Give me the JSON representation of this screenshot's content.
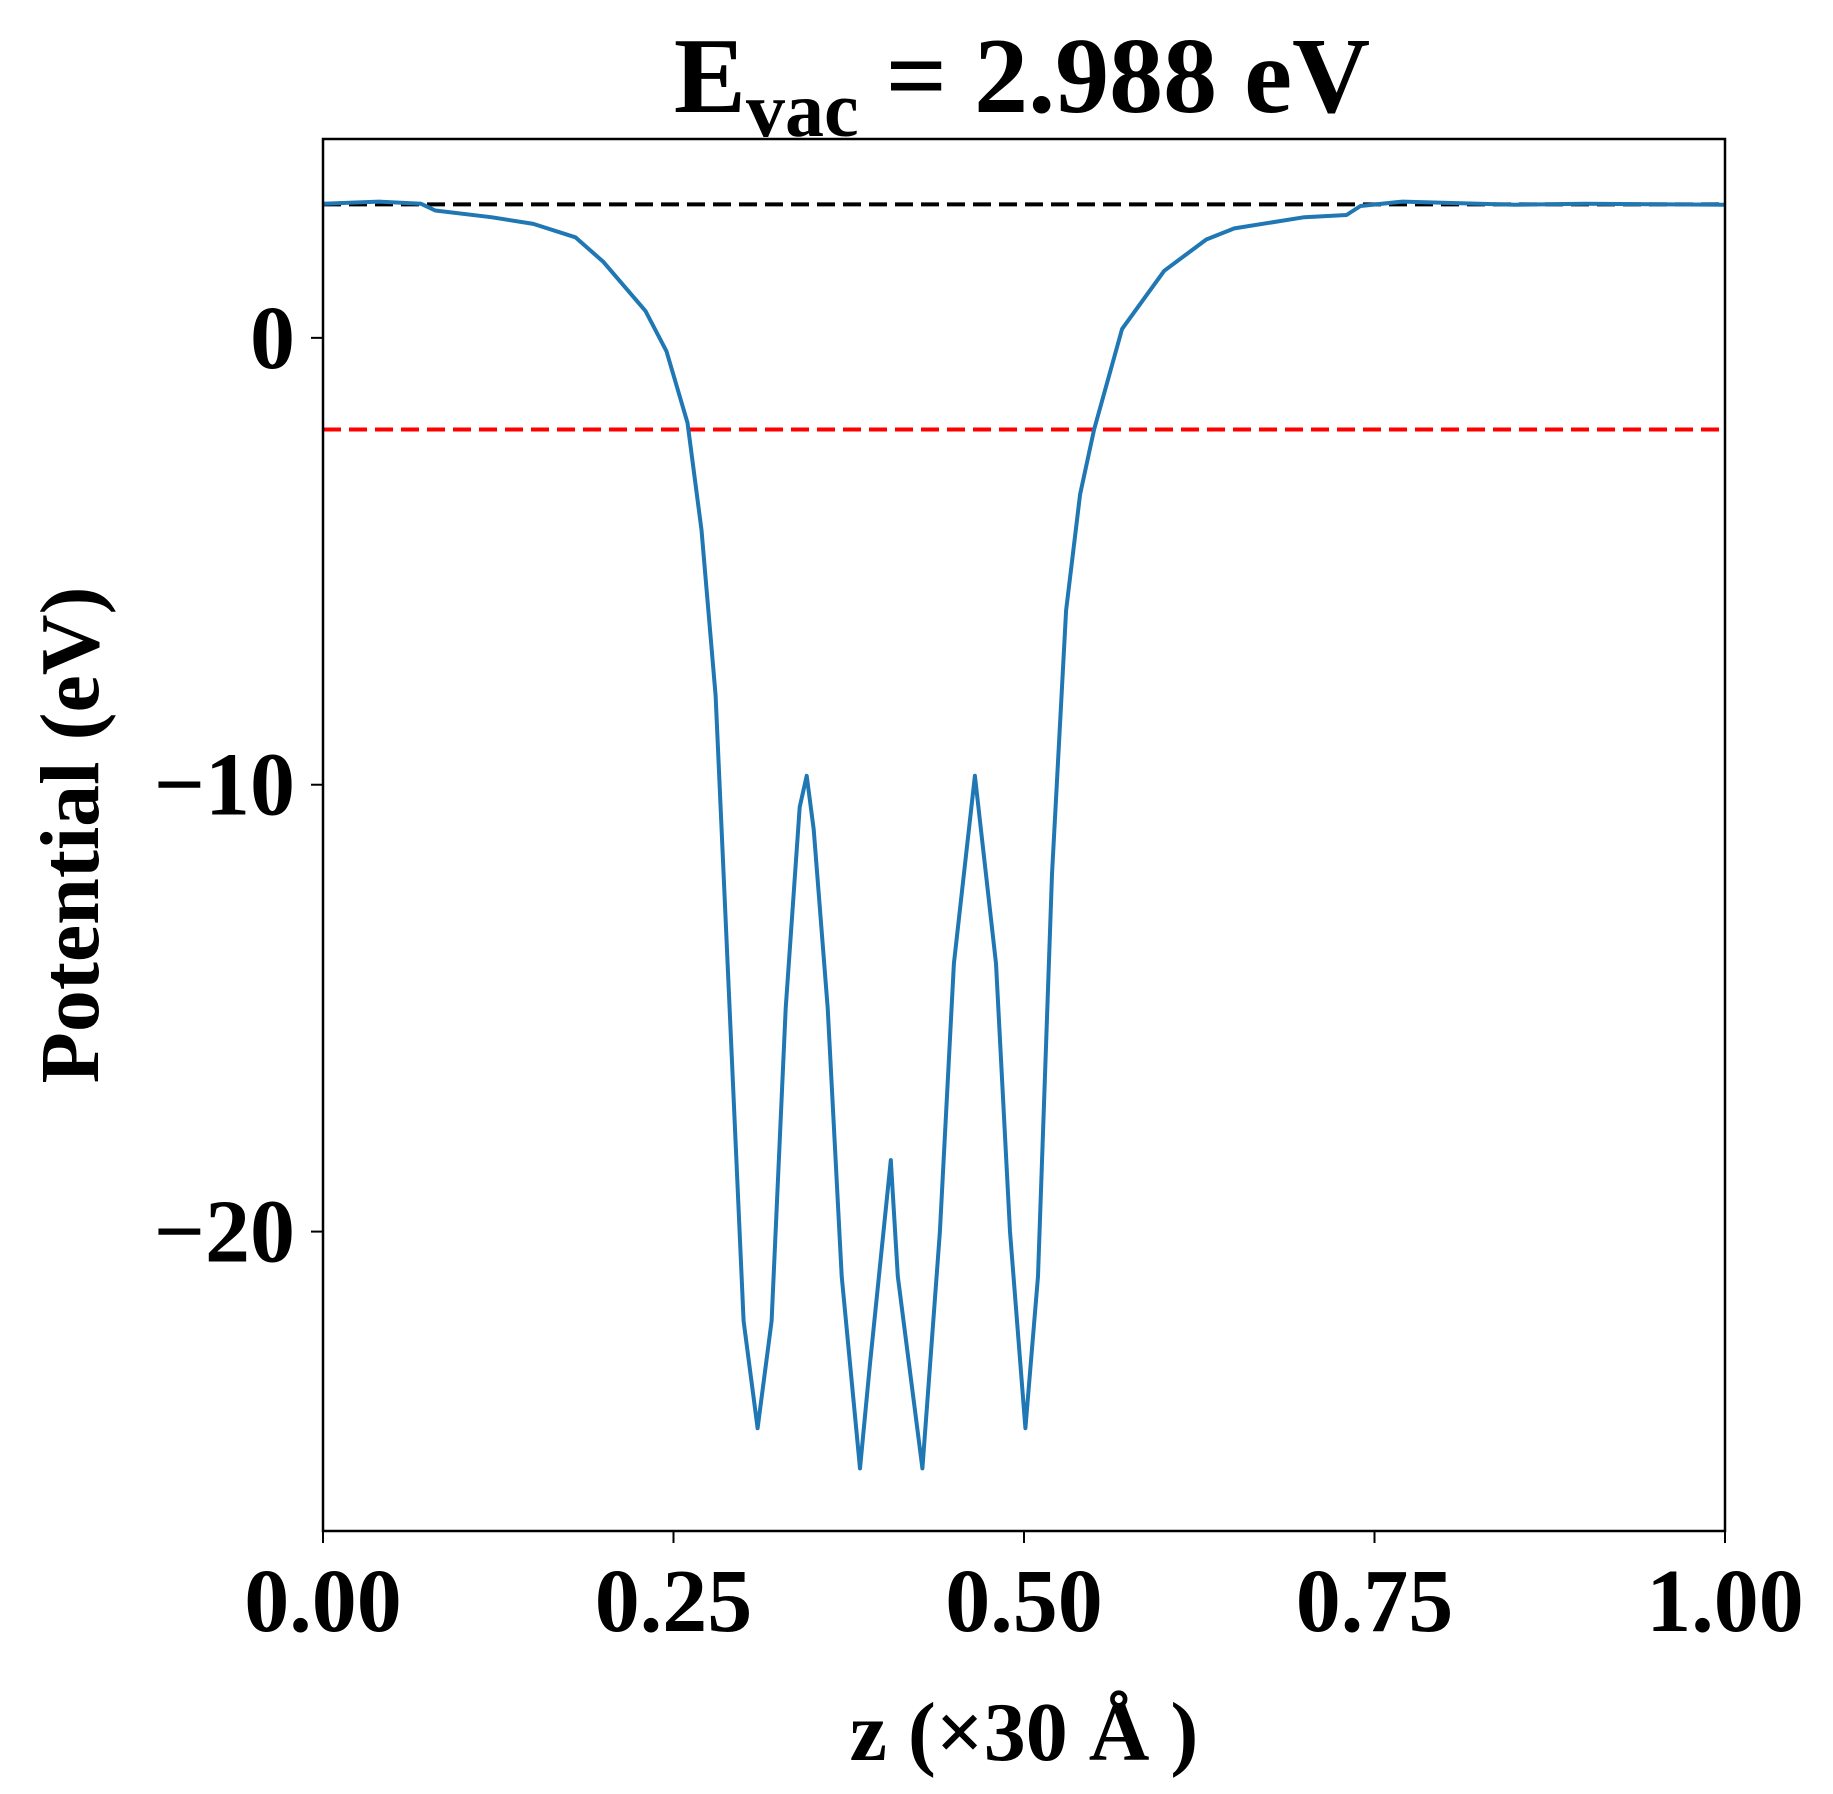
{
  "chart_data": {
    "type": "line",
    "title_parts": [
      "E",
      "vac",
      " = 2.988 eV"
    ],
    "xlabel": "z (×30 Å )",
    "ylabel": "Potential (eV)",
    "x": [
      0,
      0.04,
      0.07,
      0.08,
      0.12,
      0.15,
      0.18,
      0.2,
      0.23,
      0.245,
      0.26,
      0.27,
      0.28,
      0.29,
      0.3,
      0.31,
      0.32,
      0.33,
      0.34,
      0.345,
      0.35,
      0.36,
      0.37,
      0.383,
      0.39,
      0.405,
      0.41,
      0.4275,
      0.44,
      0.45,
      0.465,
      0.48,
      0.49,
      0.501,
      0.51,
      0.52,
      0.53,
      0.54,
      0.55,
      0.57,
      0.6,
      0.63,
      0.65,
      0.7,
      0.73,
      0.74,
      0.77,
      0.85,
      0.9,
      1.0
    ],
    "series": [
      {
        "name": "potential",
        "color": "#1f77b4",
        "values": [
          3.0,
          3.05,
          3.0,
          2.85,
          2.7,
          2.55,
          2.25,
          1.7,
          0.6,
          -0.3,
          -1.9,
          -4.3,
          -8,
          -15,
          -22,
          -24.4,
          -22,
          -15,
          -10.5,
          -9.8,
          -11,
          -15,
          -21,
          -25.3,
          -23,
          -18.4,
          -21,
          -25.3,
          -20,
          -14,
          -9.8,
          -14,
          -20,
          -24.4,
          -21,
          -12,
          -6.1,
          -3.5,
          -2.05,
          0.2,
          1.5,
          2.2,
          2.45,
          2.7,
          2.75,
          2.95,
          3.05,
          2.98,
          3.0,
          2.98
        ]
      }
    ],
    "hlines": [
      {
        "value": 2.988,
        "color": "#000000"
      },
      {
        "value": -2.05,
        "color": "#ff0000"
      }
    ],
    "xlim": [
      0,
      1
    ],
    "ylim": [
      -26.7,
      4.45
    ],
    "xticks": [
      {
        "value": 0,
        "label": "0.00"
      },
      {
        "value": 0.25,
        "label": "0.25"
      },
      {
        "value": 0.5,
        "label": "0.50"
      },
      {
        "value": 0.75,
        "label": "0.75"
      },
      {
        "value": 1,
        "label": "1.00"
      }
    ],
    "yticks": [
      {
        "value": -20,
        "label": "−20"
      },
      {
        "value": -10,
        "label": "−10"
      },
      0
    ],
    "grid": false
  }
}
